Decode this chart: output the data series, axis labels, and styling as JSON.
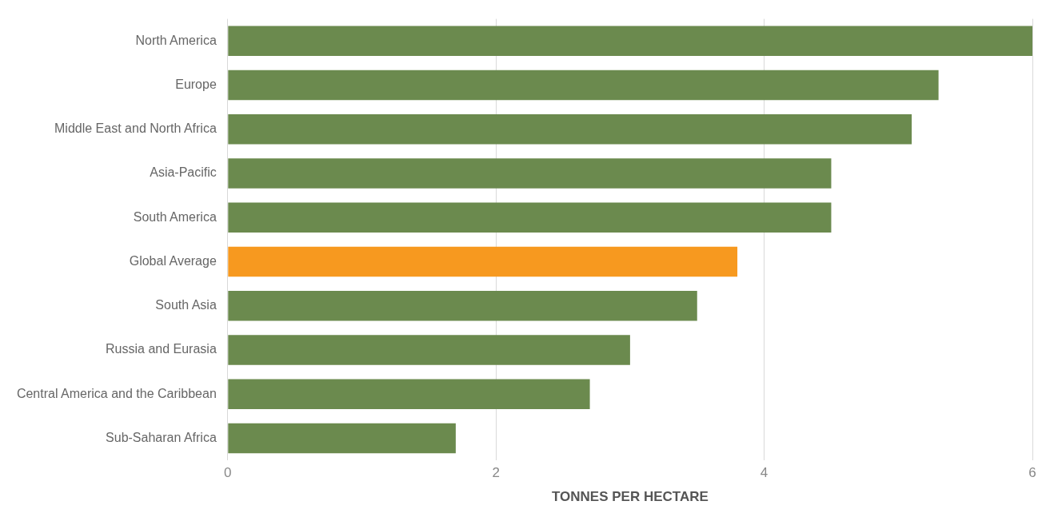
{
  "chart_data": {
    "type": "bar",
    "orientation": "horizontal",
    "xlabel": "TONNES PER HECTARE",
    "categories": [
      "North America",
      "Europe",
      "Middle East and North Africa",
      "Asia-Pacific",
      "South America",
      "Global Average",
      "South Asia",
      "Russia and Eurasia",
      "Central America and the Caribbean",
      "Sub-Saharan Africa"
    ],
    "values": [
      6.0,
      5.3,
      5.1,
      4.5,
      4.5,
      3.8,
      3.5,
      3.0,
      2.7,
      1.7
    ],
    "colors": [
      "#6b8a4e",
      "#6b8a4e",
      "#6b8a4e",
      "#6b8a4e",
      "#6b8a4e",
      "#f7991f",
      "#6b8a4e",
      "#6b8a4e",
      "#6b8a4e",
      "#6b8a4e"
    ],
    "xlim": [
      0,
      6
    ],
    "xticks": [
      0,
      2,
      4,
      6
    ],
    "grid": "x"
  }
}
